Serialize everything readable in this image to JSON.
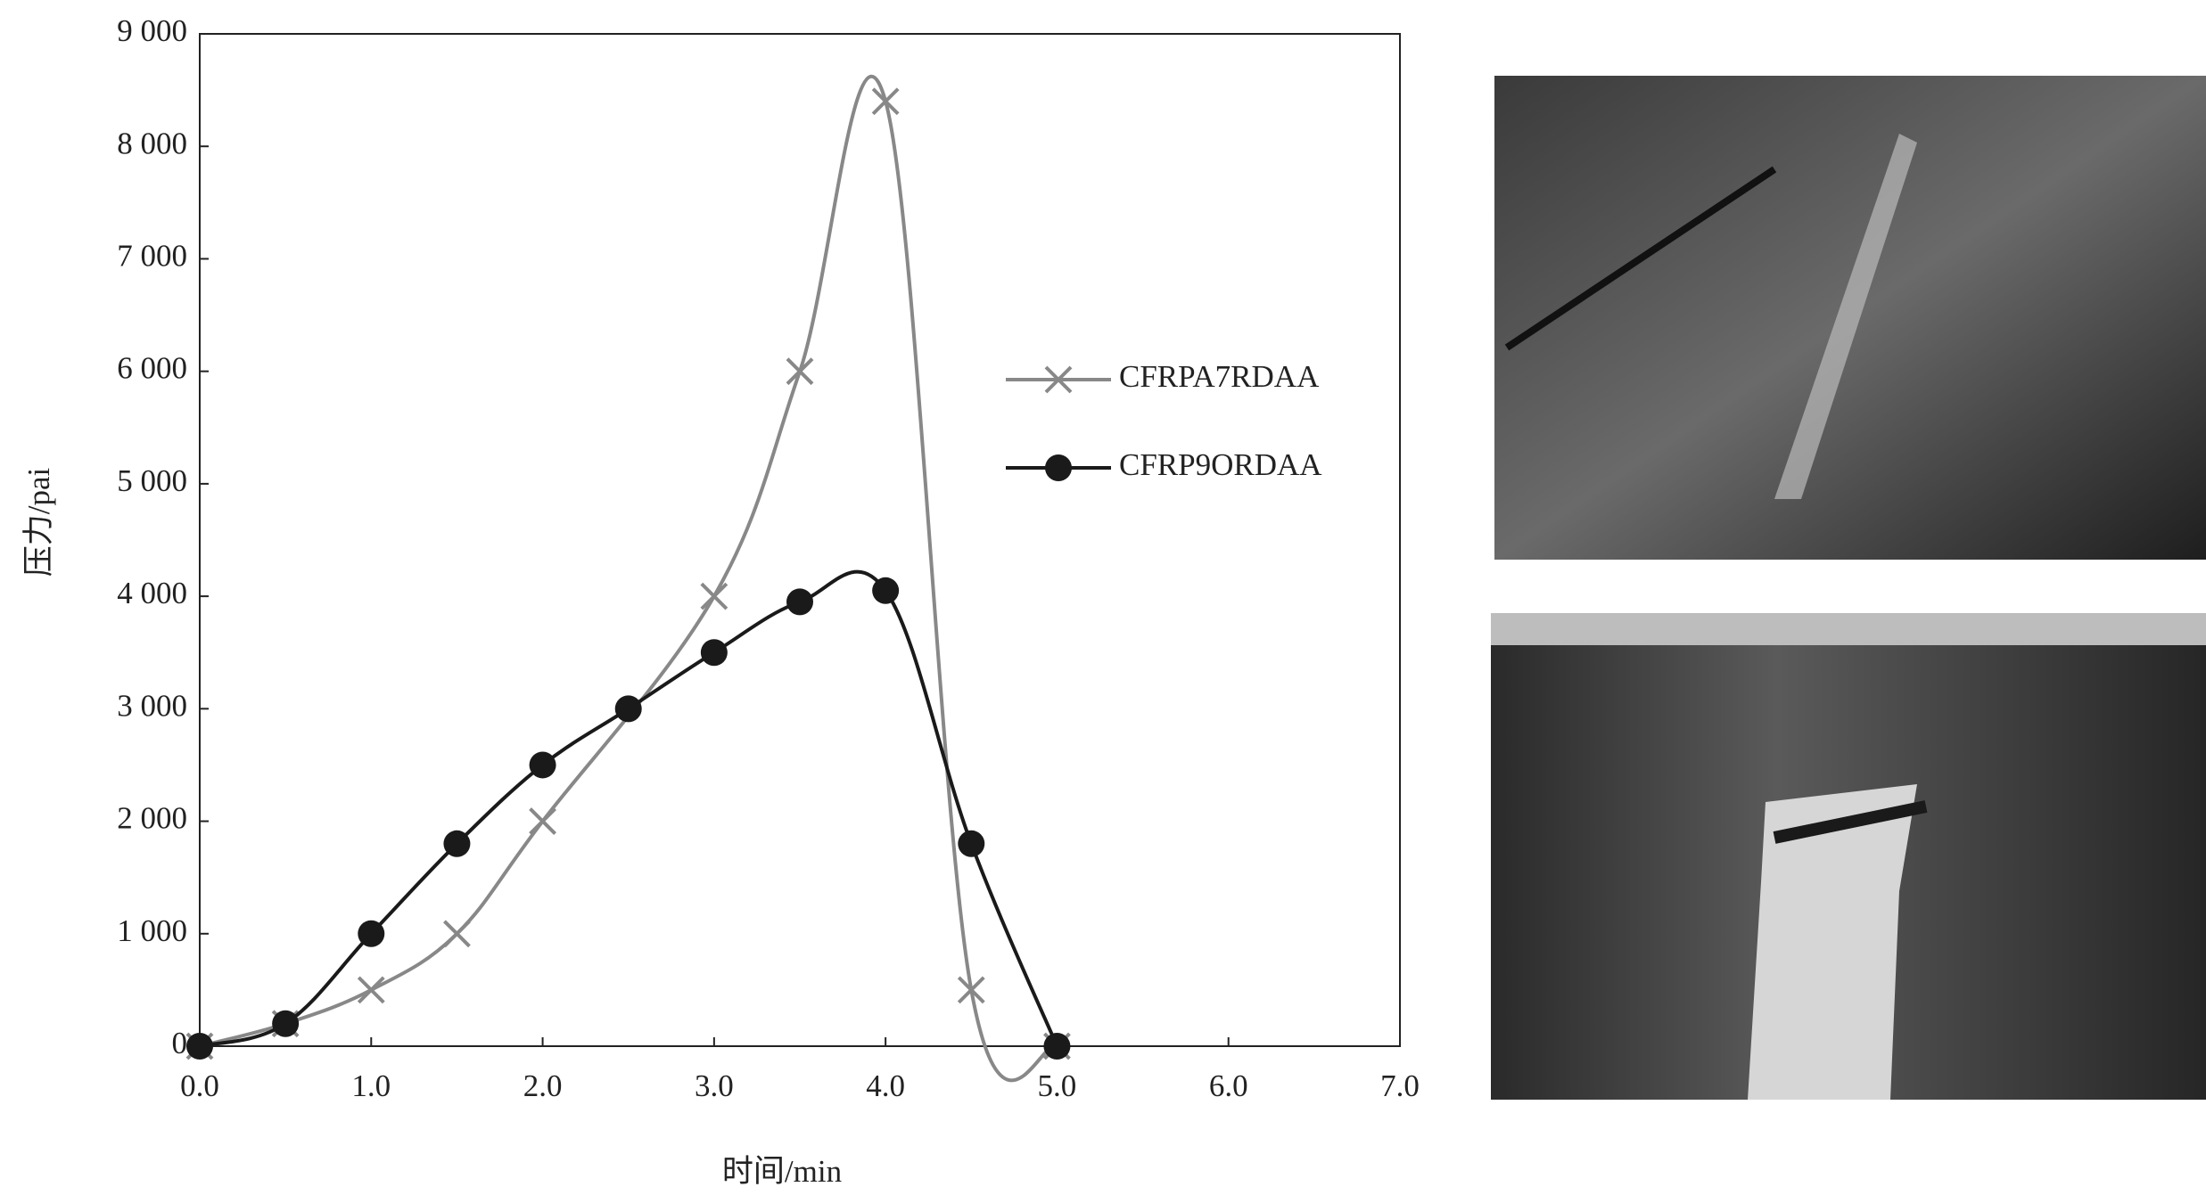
{
  "chart_data": {
    "type": "line",
    "xlabel": "时间/min",
    "ylabel": "压力/pai",
    "xlim": [
      0,
      7
    ],
    "ylim": [
      0,
      9000
    ],
    "xticks": [
      {
        "value": 0,
        "label": "0.0"
      },
      {
        "value": 1,
        "label": "1.0"
      },
      {
        "value": 2,
        "label": "2.0"
      },
      {
        "value": 3,
        "label": "3.0"
      },
      {
        "value": 4,
        "label": "4.0"
      },
      {
        "value": 5,
        "label": "5.0"
      },
      {
        "value": 6,
        "label": "6.0"
      },
      {
        "value": 7,
        "label": "7.0"
      }
    ],
    "yticks": [
      0,
      {
        "value": 1000,
        "label": "1 000"
      },
      {
        "value": 2000,
        "label": "2 000"
      },
      {
        "value": 3000,
        "label": "3 000"
      },
      {
        "value": 4000,
        "label": "4 000"
      },
      {
        "value": 5000,
        "label": "5 000"
      },
      {
        "value": 6000,
        "label": "6 000"
      },
      {
        "value": 7000,
        "label": "7 000"
      },
      {
        "value": 8000,
        "label": "8 000"
      },
      {
        "value": 9000,
        "label": "9 000"
      }
    ],
    "series": [
      {
        "name": "CFRPA7RDAA",
        "color": "#888888",
        "marker": "x",
        "x": [
          0,
          0.5,
          1,
          1.5,
          2,
          3,
          3.5,
          4,
          4.5,
          5
        ],
        "values": [
          0,
          200,
          500,
          1000,
          2000,
          4000,
          6000,
          8400,
          500,
          0
        ]
      },
      {
        "name": "CFRP9ORDAA",
        "color": "#1a1a1a",
        "marker": "circle",
        "x": [
          0,
          0.5,
          1,
          1.5,
          2,
          2.5,
          3,
          3.5,
          4,
          4.5,
          5
        ],
        "values": [
          0,
          200,
          1000,
          1800,
          2500,
          3000,
          3500,
          3950,
          4050,
          1800,
          0
        ]
      }
    ]
  }
}
